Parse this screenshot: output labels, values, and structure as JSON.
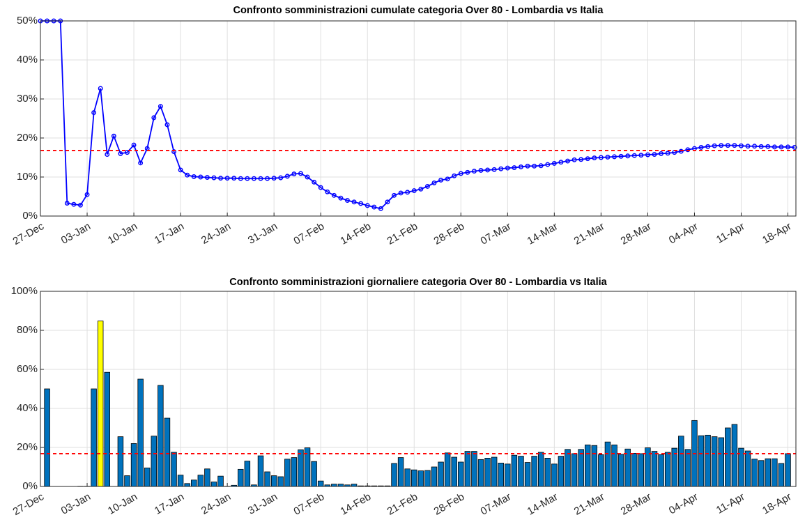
{
  "chart_data": [
    {
      "type": "line",
      "title": "Confronto somministrazioni cumulate categoria Over 80 - Lombardia vs Italia",
      "categories": [
        "27-Dec",
        "28-Dec",
        "29-Dec",
        "30-Dec",
        "31-Dec",
        "01-Jan",
        "02-Jan",
        "03-Jan",
        "04-Jan",
        "05-Jan",
        "06-Jan",
        "07-Jan",
        "08-Jan",
        "09-Jan",
        "10-Jan",
        "11-Jan",
        "12-Jan",
        "13-Jan",
        "14-Jan",
        "15-Jan",
        "16-Jan",
        "17-Jan",
        "18-Jan",
        "19-Jan",
        "20-Jan",
        "21-Jan",
        "22-Jan",
        "23-Jan",
        "24-Jan",
        "25-Jan",
        "26-Jan",
        "27-Jan",
        "28-Jan",
        "29-Jan",
        "30-Jan",
        "31-Jan",
        "01-Feb",
        "02-Feb",
        "03-Feb",
        "04-Feb",
        "05-Feb",
        "06-Feb",
        "07-Feb",
        "08-Feb",
        "09-Feb",
        "10-Feb",
        "11-Feb",
        "12-Feb",
        "13-Feb",
        "14-Feb",
        "15-Feb",
        "16-Feb",
        "17-Feb",
        "18-Feb",
        "19-Feb",
        "20-Feb",
        "21-Feb",
        "22-Feb",
        "23-Feb",
        "24-Feb",
        "25-Feb",
        "26-Feb",
        "27-Feb",
        "28-Feb",
        "01-Mar",
        "02-Mar",
        "03-Mar",
        "04-Mar",
        "05-Mar",
        "06-Mar",
        "07-Mar",
        "08-Mar",
        "09-Mar",
        "10-Mar",
        "11-Mar",
        "12-Mar",
        "13-Mar",
        "14-Mar",
        "15-Mar",
        "16-Mar",
        "17-Mar",
        "18-Mar",
        "19-Mar",
        "20-Mar",
        "21-Mar",
        "22-Mar",
        "23-Mar",
        "24-Mar",
        "25-Mar",
        "26-Mar",
        "27-Mar",
        "28-Mar",
        "29-Mar",
        "30-Mar",
        "31-Mar",
        "01-Apr",
        "02-Apr",
        "03-Apr",
        "04-Apr",
        "05-Apr",
        "06-Apr",
        "07-Apr",
        "08-Apr",
        "09-Apr",
        "10-Apr",
        "11-Apr",
        "12-Apr",
        "13-Apr",
        "14-Apr",
        "15-Apr",
        "16-Apr",
        "17-Apr",
        "18-Apr",
        "19-Apr"
      ],
      "values": [
        50,
        50,
        50,
        50,
        3.3,
        3.0,
        2.8,
        5.5,
        26.5,
        32.7,
        15.8,
        20.5,
        16.0,
        16.3,
        18.2,
        13.6,
        17.3,
        25.2,
        28.1,
        23.4,
        16.5,
        11.8,
        10.5,
        10.1,
        10.0,
        9.9,
        9.8,
        9.7,
        9.7,
        9.7,
        9.6,
        9.6,
        9.6,
        9.6,
        9.6,
        9.7,
        9.8,
        10.2,
        10.8,
        10.9,
        10.0,
        8.7,
        7.3,
        6.2,
        5.3,
        4.6,
        4.0,
        3.6,
        3.2,
        2.7,
        2.3,
        1.9,
        3.6,
        5.3,
        5.9,
        6.1,
        6.5,
        6.9,
        7.6,
        8.5,
        9.2,
        9.5,
        10.3,
        10.9,
        11.2,
        11.5,
        11.7,
        11.8,
        11.9,
        12.1,
        12.3,
        12.4,
        12.6,
        12.8,
        12.8,
        12.9,
        13.2,
        13.5,
        13.8,
        14.1,
        14.4,
        14.5,
        14.7,
        14.9,
        15.0,
        15.1,
        15.2,
        15.3,
        15.4,
        15.5,
        15.6,
        15.7,
        15.8,
        16.0,
        16.1,
        16.3,
        16.6,
        17.0,
        17.3,
        17.6,
        17.8,
        18.0,
        18.1,
        18.1,
        18.1,
        18.0,
        17.9,
        17.9,
        17.8,
        17.8,
        17.7,
        17.7,
        17.7,
        17.6
      ],
      "color": "#0000ff",
      "reference_line": {
        "value": 16.8,
        "color": "#ff0000"
      },
      "ylim": [
        0,
        50
      ],
      "yticks": [
        {
          "value": 0,
          "label": "0%"
        },
        {
          "value": 10,
          "label": "10%"
        },
        {
          "value": 20,
          "label": "20%"
        },
        {
          "value": 30,
          "label": "30%"
        },
        {
          "value": 40,
          "label": "40%"
        },
        {
          "value": 50,
          "label": "50%"
        }
      ],
      "xticks": [
        "27-Dec",
        "03-Jan",
        "10-Jan",
        "17-Jan",
        "24-Jan",
        "31-Jan",
        "07-Feb",
        "14-Feb",
        "21-Feb",
        "28-Feb",
        "07-Mar",
        "14-Mar",
        "21-Mar",
        "28-Mar",
        "04-Apr",
        "11-Apr",
        "18-Apr"
      ],
      "grid": true
    },
    {
      "type": "bar",
      "title": "Confronto somministrazioni giornaliere categoria Over 80 - Lombardia vs Italia",
      "categories": [
        "27-Dec",
        "28-Dec",
        "29-Dec",
        "30-Dec",
        "31-Dec",
        "01-Jan",
        "02-Jan",
        "03-Jan",
        "04-Jan",
        "05-Jan",
        "06-Jan",
        "07-Jan",
        "08-Jan",
        "09-Jan",
        "10-Jan",
        "11-Jan",
        "12-Jan",
        "13-Jan",
        "14-Jan",
        "15-Jan",
        "16-Jan",
        "17-Jan",
        "18-Jan",
        "19-Jan",
        "20-Jan",
        "21-Jan",
        "22-Jan",
        "23-Jan",
        "24-Jan",
        "25-Jan",
        "26-Jan",
        "27-Jan",
        "28-Jan",
        "29-Jan",
        "30-Jan",
        "31-Jan",
        "01-Feb",
        "02-Feb",
        "03-Feb",
        "04-Feb",
        "05-Feb",
        "06-Feb",
        "07-Feb",
        "08-Feb",
        "09-Feb",
        "10-Feb",
        "11-Feb",
        "12-Feb",
        "13-Feb",
        "14-Feb",
        "15-Feb",
        "16-Feb",
        "17-Feb",
        "18-Feb",
        "19-Feb",
        "20-Feb",
        "21-Feb",
        "22-Feb",
        "23-Feb",
        "24-Feb",
        "25-Feb",
        "26-Feb",
        "27-Feb",
        "28-Feb",
        "01-Mar",
        "02-Mar",
        "03-Mar",
        "04-Mar",
        "05-Mar",
        "06-Mar",
        "07-Mar",
        "08-Mar",
        "09-Mar",
        "10-Mar",
        "11-Mar",
        "12-Mar",
        "13-Mar",
        "14-Mar",
        "15-Mar",
        "16-Mar",
        "17-Mar",
        "18-Mar",
        "19-Mar",
        "20-Mar",
        "21-Mar",
        "22-Mar",
        "23-Mar",
        "24-Mar",
        "25-Mar",
        "26-Mar",
        "27-Mar",
        "28-Mar",
        "29-Mar",
        "30-Mar",
        "31-Mar",
        "01-Apr",
        "02-Apr",
        "03-Apr",
        "04-Apr",
        "05-Apr",
        "06-Apr",
        "07-Apr",
        "08-Apr",
        "09-Apr",
        "10-Apr",
        "11-Apr",
        "12-Apr",
        "13-Apr",
        "14-Apr",
        "15-Apr",
        "16-Apr",
        "17-Apr",
        "18-Apr",
        "19-Apr"
      ],
      "values": [
        0,
        50,
        0,
        0,
        0,
        0,
        0.1,
        0.1,
        50,
        84.8,
        58.5,
        0,
        25.5,
        5.5,
        22,
        55,
        9.5,
        25.8,
        51.8,
        35,
        17.5,
        5.8,
        1.5,
        3.3,
        5.8,
        9.0,
        2.3,
        5.3,
        0.1,
        0.6,
        8.8,
        13,
        0.8,
        15.7,
        7.5,
        5.5,
        5,
        14,
        14.8,
        18.8,
        19.8,
        12.8,
        2.8,
        0.8,
        1.2,
        1.2,
        0.8,
        1.2,
        0.3,
        0.3,
        0.3,
        0.3,
        0.3,
        11.8,
        14.8,
        9,
        8.5,
        8,
        8.2,
        10,
        12.5,
        17.2,
        15,
        12.5,
        18,
        18,
        13.8,
        14.5,
        15,
        12,
        11.5,
        16,
        15.5,
        12.3,
        15.5,
        17.5,
        14.5,
        11.5,
        15.5,
        19,
        16.8,
        19,
        21.3,
        21,
        16.3,
        22.8,
        21.3,
        16.5,
        19.2,
        17,
        16.8,
        19.8,
        18,
        16.3,
        17.5,
        19.6,
        25.8,
        19,
        33.8,
        26,
        26.3,
        25.5,
        25,
        30,
        31.8,
        19.6,
        18.2,
        14,
        13.3,
        14.2,
        14.2,
        11.8,
        16.8,
        null
      ],
      "color": "#0072bd",
      "highlight_index": 9,
      "highlight_color": "#ffff00",
      "reference_line": {
        "value": 16.8,
        "color": "#ff0000"
      },
      "ylim": [
        0,
        100
      ],
      "yticks": [
        {
          "value": 0,
          "label": "0%"
        },
        {
          "value": 20,
          "label": "20%"
        },
        {
          "value": 40,
          "label": "40%"
        },
        {
          "value": 60,
          "label": "60%"
        },
        {
          "value": 80,
          "label": "80%"
        },
        {
          "value": 100,
          "label": "100%"
        }
      ],
      "xticks": [
        "27-Dec",
        "03-Jan",
        "10-Jan",
        "17-Jan",
        "24-Jan",
        "31-Jan",
        "07-Feb",
        "14-Feb",
        "21-Feb",
        "28-Feb",
        "07-Mar",
        "14-Mar",
        "21-Mar",
        "28-Mar",
        "04-Apr",
        "11-Apr",
        "18-Apr"
      ],
      "grid": true
    }
  ]
}
